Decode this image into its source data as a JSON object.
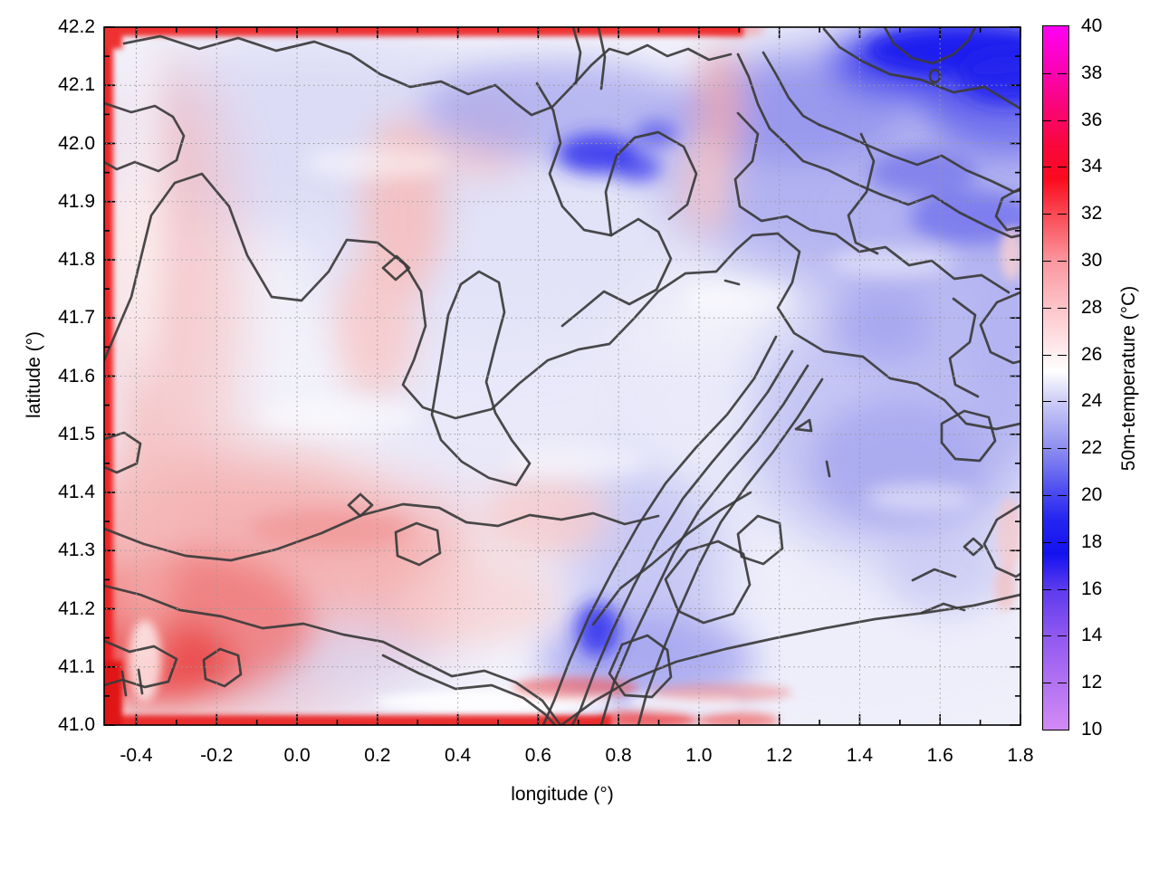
{
  "figure": {
    "title": "",
    "kind": "filled contour temperature map"
  },
  "x_axis": {
    "label": "longitude (°)",
    "ticks": [
      "-0.4",
      "-0.2",
      "0.0",
      "0.2",
      "0.4",
      "0.6",
      "0.8",
      "1.0",
      "1.2",
      "1.4",
      "1.6",
      "1.8"
    ],
    "range": [
      -0.48,
      1.8
    ],
    "minor_tick_interval": 0.1
  },
  "y_axis": {
    "label": "latitude (°)",
    "ticks": [
      "41.0",
      "41.1",
      "41.2",
      "41.3",
      "41.4",
      "41.5",
      "41.6",
      "41.7",
      "41.8",
      "41.9",
      "42.0",
      "42.1",
      "42.2"
    ],
    "range": [
      41.0,
      42.2
    ],
    "minor_tick_interval": 0.05
  },
  "colorbar": {
    "label": "50m-temperature (°C)",
    "range": [
      10,
      40
    ],
    "ticks": [
      "10",
      "12",
      "14",
      "16",
      "18",
      "20",
      "22",
      "24",
      "26",
      "28",
      "30",
      "32",
      "34",
      "36",
      "38",
      "40"
    ],
    "gradient_stops": [
      {
        "v": 10,
        "c": "#d28af5"
      },
      {
        "v": 12,
        "c": "#b272f2"
      },
      {
        "v": 14,
        "c": "#9058ef"
      },
      {
        "v": 16,
        "c": "#5c3aee"
      },
      {
        "v": 17.5,
        "c": "#1212f0"
      },
      {
        "v": 19,
        "c": "#2626f0"
      },
      {
        "v": 20,
        "c": "#4646f0"
      },
      {
        "v": 22,
        "c": "#8e8ef0"
      },
      {
        "v": 24,
        "c": "#cdcdf6"
      },
      {
        "v": 25.3,
        "c": "#ffffff"
      },
      {
        "v": 26.5,
        "c": "#ffe4e7"
      },
      {
        "v": 28,
        "c": "#fdc4c9"
      },
      {
        "v": 30,
        "c": "#fb969e"
      },
      {
        "v": 32,
        "c": "#fa4853"
      },
      {
        "v": 33.5,
        "c": "#fa0a1e"
      },
      {
        "v": 35,
        "c": "#f9073f"
      },
      {
        "v": 36.5,
        "c": "#f90576"
      },
      {
        "v": 38,
        "c": "#fa03b0"
      },
      {
        "v": 40,
        "c": "#ff00f4"
      }
    ]
  },
  "chart_data": {
    "type": "heatmap",
    "title": "",
    "xlabel": "longitude (°)",
    "ylabel": "latitude (°)",
    "colorbar_label": "50m-temperature (°C)",
    "x_range": [
      -0.48,
      1.8
    ],
    "y_range": [
      41.0,
      42.2
    ],
    "color_range": [
      10,
      40
    ],
    "grid": "dotted gray gridlines at major ticks, drawn in front",
    "overlay": "unlabeled dark-gray contour lines follow the temperature field",
    "sampled_grid": {
      "lon": [
        -0.4,
        -0.2,
        0.0,
        0.2,
        0.4,
        0.6,
        0.8,
        1.0,
        1.2,
        1.4,
        1.6,
        1.8
      ],
      "lat": [
        42.2,
        42.0,
        41.8,
        41.6,
        41.4,
        41.2,
        41.0
      ],
      "temperature_C": [
        [
          29,
          28,
          28,
          27.5,
          27,
          26,
          25,
          26,
          21,
          19.5,
          17.5,
          17
        ],
        [
          26,
          24,
          23.5,
          23.5,
          23,
          21.5,
          19.5,
          24,
          22,
          21,
          20,
          18.5
        ],
        [
          26,
          24.5,
          24,
          23.5,
          23.5,
          23,
          23.5,
          25,
          21.5,
          22,
          22.5,
          21.5
        ],
        [
          26.5,
          25.5,
          25,
          24.5,
          24,
          24.5,
          25,
          24.5,
          22,
          21.5,
          21,
          22
        ],
        [
          27.5,
          26.5,
          27,
          26.5,
          25,
          25.5,
          25.5,
          24,
          22.5,
          21,
          21.5,
          22.5
        ],
        [
          28.5,
          27.5,
          26.5,
          25,
          24.5,
          25.5,
          24,
          22,
          23.5,
          24,
          24.5,
          24
        ],
        [
          30,
          29,
          28.5,
          27,
          26,
          24,
          21,
          22,
          23.5,
          24.5,
          24.5,
          24.5
        ]
      ]
    },
    "notable_features": [
      "hot red band (~30-32°C) along the entire left edge and the bottom-left/bottom edge",
      "thin hot red strip along the top edge from lon -0.48 to ~1.1",
      "deep blue cold pool (~17°C) in the far north-east corner",
      "cold blue patches (~19-20°C) near lon 0.7-0.9, lat 41.95-42.05",
      "broad cool blue region over the eastern half",
      "cool blue ridge with dark spot near lon 0.85, lat 41.1 running north-east",
      "pale near-white (~24-25°C) south-east corner and center"
    ]
  }
}
